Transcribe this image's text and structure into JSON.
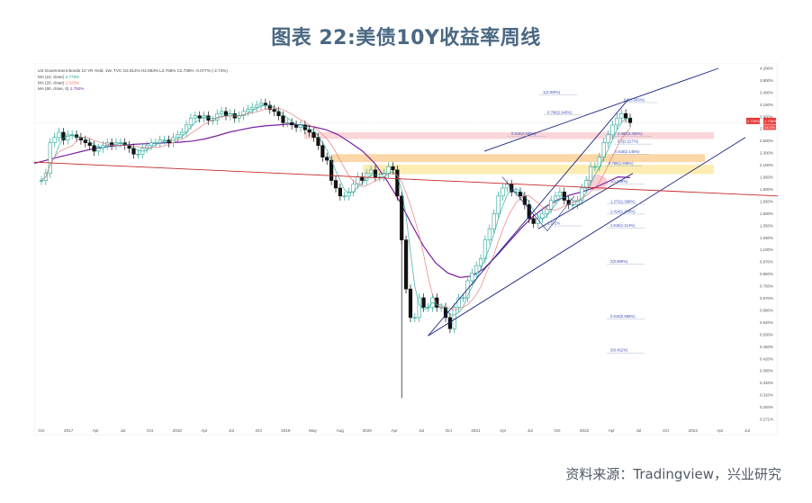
{
  "page": {
    "title": "图表 22:美债10Y收益率周线",
    "source": "资料来源：Tradingview，兴业研究"
  },
  "chart_data": {
    "type": "candlestick",
    "header": {
      "line1": "US Government Bonds 10 YR Yield, 1W, TVC",
      "line1_values": "O2.814%  H2.953%  L2.708%  C2.738%  -0.077% (-2.74%)",
      "ma_lines": [
        {
          "label": "MA (10, close)",
          "value": "2.779%",
          "color": "#26a69a"
        },
        {
          "label": "MA (20, close)",
          "value": "2.525%",
          "color": "#e57373"
        },
        {
          "label": "MA (50, close, 0)",
          "value": "1.792%",
          "color": "#7b1fa2"
        }
      ]
    },
    "x_ticks": [
      "Oct",
      "2017",
      "Apr",
      "Jul",
      "Oct",
      "2018",
      "Apr",
      "Jul",
      "Oct",
      "2019",
      "May",
      "Aug",
      "2020",
      "Apr",
      "Jul",
      "Oct",
      "2021",
      "Apr",
      "Jul",
      "Oct",
      "2022",
      "Apr",
      "Jul",
      "Oct",
      "2023",
      "Apr",
      "Jul"
    ],
    "y_ticks": [
      "4.200%",
      "3.800%",
      "3.400%",
      "3.160%",
      "2.900%",
      "2.700%",
      "2.500%",
      "2.300%",
      "2.100%",
      "1.950%",
      "1.800%",
      "1.650%",
      "1.500%",
      "1.350%",
      "1.250%",
      "1.100%",
      "0.970%",
      "0.860%",
      "0.760%",
      "0.670%",
      "0.580%",
      "0.540%",
      "0.500%",
      "0.460%",
      "0.420%",
      "0.380%",
      "0.340%",
      "0.310%",
      "0.294%",
      "0.271%"
    ],
    "last_price_label": "2.738%",
    "last_price_sub": "14:17h",
    "fib_labels": [
      "1(3.309%)",
      "0.786(2.943%)",
      "0.618(2.605%)",
      "0.5(3.283%)",
      "0.382(2.484%)",
      "0.5(2.217%)",
      "0.618(2.145%)",
      "0.786(1.946%)",
      "1(1.668%)",
      "1.272(1.398%)",
      "1.414(1.278%)",
      "1.618(1.114%)",
      "1.272%",
      "2(0.869%)",
      "2.618(0.588%)",
      "3(0.452%)"
    ],
    "series_note": "US 10Y Treasury yield weekly, late 2016 to mid 2022",
    "weekly_close": [
      1.75,
      1.85,
      2.35,
      2.45,
      2.55,
      2.4,
      2.5,
      2.5,
      2.45,
      2.4,
      2.35,
      2.3,
      2.2,
      2.25,
      2.3,
      2.35,
      2.3,
      2.35,
      2.35,
      2.3,
      2.25,
      2.15,
      2.15,
      2.25,
      2.3,
      2.35,
      2.35,
      2.4,
      2.4,
      2.35,
      2.45,
      2.5,
      2.55,
      2.7,
      2.85,
      2.9,
      2.85,
      2.9,
      2.8,
      2.8,
      2.95,
      3.0,
      2.9,
      2.95,
      2.85,
      2.9,
      3.0,
      3.05,
      3.1,
      3.15,
      3.2,
      3.15,
      3.05,
      3.0,
      2.9,
      2.75,
      2.75,
      2.7,
      2.65,
      2.7,
      2.6,
      2.55,
      2.45,
      2.3,
      2.1,
      2.05,
      1.75,
      1.65,
      1.55,
      1.55,
      1.6,
      1.7,
      1.8,
      1.75,
      1.85,
      1.9,
      1.8,
      1.8,
      1.85,
      1.95,
      1.9,
      1.55,
      1.1,
      0.75,
      0.6,
      0.6,
      0.7,
      0.65,
      0.65,
      0.7,
      0.65,
      0.65,
      0.6,
      0.55,
      0.65,
      0.7,
      0.7,
      0.8,
      0.85,
      0.9,
      0.95,
      1.1,
      1.2,
      1.35,
      1.55,
      1.65,
      1.7,
      1.6,
      1.6,
      1.55,
      1.45,
      1.3,
      1.25,
      1.3,
      1.35,
      1.4,
      1.5,
      1.55,
      1.6,
      1.5,
      1.45,
      1.45,
      1.5,
      1.65,
      1.75,
      1.95,
      1.95,
      2.1,
      2.35,
      2.5,
      2.7,
      2.85,
      2.95,
      2.85,
      2.75
    ],
    "weekly_ma50": [
      2.0,
      2.05,
      2.1,
      2.15,
      2.2,
      2.25,
      2.28,
      2.3,
      2.32,
      2.33,
      2.34,
      2.35,
      2.36,
      2.38,
      2.42,
      2.48,
      2.55,
      2.6,
      2.65,
      2.68,
      2.7,
      2.72,
      2.7,
      2.66,
      2.6,
      2.5,
      2.35,
      2.2,
      2.0,
      1.75,
      1.5,
      1.25,
      1.05,
      0.92,
      0.85,
      0.82,
      0.83,
      0.88,
      0.97,
      1.08,
      1.2,
      1.32,
      1.42,
      1.5,
      1.56,
      1.6,
      1.65,
      1.72,
      1.8,
      1.79
    ]
  }
}
